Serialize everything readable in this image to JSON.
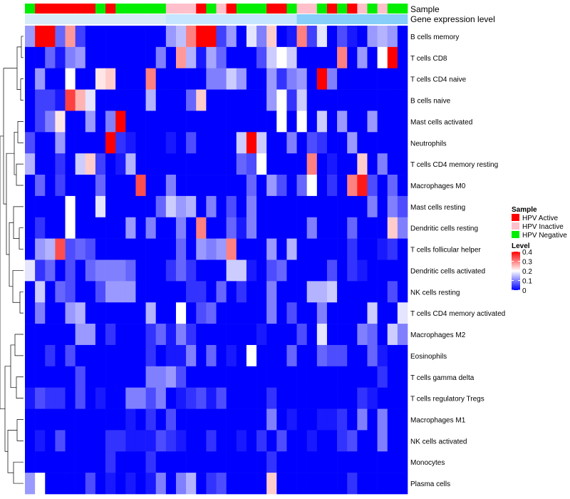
{
  "chart_data": {
    "type": "heatmap",
    "title": "",
    "annotations": [
      {
        "name": "Sample"
      },
      {
        "name": "Gene expression level"
      }
    ],
    "sample_groups": [
      "HPV Negative",
      "HPV Active",
      "HPV Active",
      "HPV Active",
      "HPV Active",
      "HPV Active",
      "HPV Active",
      "HPV Negative",
      "HPV Active",
      "HPV Negative",
      "HPV Negative",
      "HPV Negative",
      "HPV Negative",
      "HPV Negative",
      "HPV Inactive",
      "HPV Inactive",
      "HPV Inactive",
      "HPV Active",
      "HPV Negative",
      "HPV Inactive",
      "HPV Active",
      "HPV Negative",
      "HPV Negative",
      "HPV Negative",
      "HPV Active",
      "HPV Active",
      "HPV Negative",
      "HPV Inactive",
      "HPV Inactive",
      "HPV Negative",
      "HPV Active",
      "HPV Negative",
      "HPV Active",
      "HPV Inactive",
      "HPV Negative",
      "HPV Inactive",
      "HPV Negative",
      "HPV Negative"
    ],
    "expression_level": [
      0,
      0,
      0,
      0,
      0,
      0,
      0,
      0,
      0,
      0,
      0,
      0,
      0,
      0,
      0.5,
      0.5,
      0.5,
      0.5,
      0.5,
      0.5,
      0.5,
      0.5,
      0.5,
      0.5,
      0.5,
      0.5,
      0.5,
      1,
      1,
      1,
      1,
      1,
      1,
      1,
      1,
      1,
      1,
      1
    ],
    "rows": [
      {
        "name": "B cells memory",
        "values": [
          0.12,
          0.4,
          0.4,
          0.08,
          0.28,
          0.05,
          0,
          0,
          0,
          0,
          0,
          0,
          0,
          0,
          0.12,
          0.15,
          0.3,
          0.4,
          0.4,
          0.05,
          0.12,
          0,
          0.18,
          0.1,
          0.24,
          0,
          0.02,
          0.3,
          0.05,
          0.18,
          0,
          0.06,
          0.02,
          0,
          0.12,
          0.14,
          0.12,
          0
        ]
      },
      {
        "name": "T cells CD8",
        "values": [
          0,
          0,
          0.08,
          0.02,
          0.1,
          0.12,
          0,
          0,
          0,
          0,
          0,
          0,
          0,
          0.1,
          0,
          0.28,
          0.14,
          0.02,
          0.13,
          0.08,
          0,
          0,
          0,
          0.06,
          0.16,
          0.2,
          0.16,
          0,
          0,
          0,
          0,
          0.3,
          0,
          0.12,
          0,
          0.2,
          0.4,
          0
        ]
      },
      {
        "name": "T cells CD4 naive",
        "values": [
          0,
          0.12,
          0,
          0,
          0.2,
          0,
          0,
          0.22,
          0.24,
          0,
          0,
          0,
          0.3,
          0,
          0,
          0,
          0,
          0,
          0.1,
          0.1,
          0.16,
          0.12,
          0,
          0,
          0.12,
          0.04,
          0.1,
          0.12,
          0,
          0.4,
          0.1,
          0,
          0,
          0,
          0,
          0,
          0,
          0
        ]
      },
      {
        "name": "B cells naive",
        "values": [
          0,
          0.05,
          0.05,
          0.02,
          0.35,
          0.26,
          0.18,
          0,
          0,
          0,
          0,
          0,
          0.14,
          0,
          0,
          0,
          0.08,
          0.24,
          0,
          0,
          0,
          0,
          0,
          0,
          0.12,
          0.2,
          0.04,
          0.16,
          0,
          0,
          0,
          0,
          0,
          0,
          0,
          0,
          0,
          0
        ]
      },
      {
        "name": "Mast cells activated",
        "values": [
          0,
          0.05,
          0.1,
          0.22,
          0,
          0,
          0.12,
          0,
          0.1,
          0.4,
          0,
          0,
          0,
          0,
          0,
          0,
          0,
          0,
          0,
          0,
          0,
          0,
          0,
          0,
          0,
          0.2,
          0,
          0.2,
          0,
          0.16,
          0,
          0.12,
          0,
          0,
          0.12,
          0,
          0,
          0
        ]
      },
      {
        "name": "Neutrophils",
        "values": [
          0.06,
          0,
          0,
          0.12,
          0,
          0,
          0,
          0,
          0.4,
          0.04,
          0.02,
          0,
          0,
          0,
          0.02,
          0,
          0.06,
          0,
          0,
          0,
          0,
          0.16,
          0.4,
          0.16,
          0,
          0,
          0.1,
          0,
          0.06,
          0.04,
          0,
          0,
          0.12,
          0,
          0,
          0,
          0,
          0
        ]
      },
      {
        "name": "T cells CD4 memory resting",
        "values": [
          0.14,
          0,
          0,
          0.04,
          0,
          0.16,
          0.24,
          0.05,
          0,
          0.02,
          0.14,
          0,
          0,
          0,
          0,
          0,
          0,
          0,
          0,
          0,
          0,
          0.08,
          0.06,
          0.2,
          0,
          0,
          0,
          0,
          0.3,
          0,
          0.02,
          0,
          0,
          0.24,
          0,
          0.1,
          0,
          0
        ]
      },
      {
        "name": "Macrophages M0",
        "values": [
          0,
          0.08,
          0,
          0.05,
          0,
          0,
          0,
          0.08,
          0,
          0,
          0,
          0.34,
          0,
          0,
          0.1,
          0,
          0,
          0,
          0,
          0,
          0,
          0,
          0.08,
          0,
          0.12,
          0.06,
          0,
          0.08,
          0.2,
          0,
          0.04,
          0,
          0.3,
          0.38,
          0.06,
          0,
          0.08,
          0
        ]
      },
      {
        "name": "Mast cells resting",
        "values": [
          0,
          0,
          0,
          0,
          0.2,
          0,
          0,
          0.18,
          0,
          0,
          0,
          0,
          0,
          0.08,
          0.16,
          0.12,
          0.14,
          0,
          0.1,
          0,
          0.06,
          0,
          0.1,
          0,
          0,
          0,
          0,
          0,
          0,
          0,
          0,
          0,
          0,
          0,
          0.1,
          0,
          0.1,
          0.06
        ]
      },
      {
        "name": "Dendritic cells resting",
        "values": [
          0,
          0.04,
          0,
          0,
          0.2,
          0,
          0,
          0,
          0,
          0,
          0.12,
          0,
          0.1,
          0,
          0,
          0.1,
          0,
          0.3,
          0,
          0,
          0.08,
          0.02,
          0.1,
          0,
          0,
          0,
          0,
          0,
          0.1,
          0,
          0,
          0,
          0.08,
          0,
          0,
          0,
          0.24,
          0.1
        ]
      },
      {
        "name": "T cells follicular helper",
        "values": [
          0,
          0.12,
          0.14,
          0.34,
          0.06,
          0.08,
          0.06,
          0,
          0,
          0,
          0,
          0,
          0,
          0,
          0,
          0.08,
          0,
          0.12,
          0.1,
          0.12,
          0.3,
          0,
          0,
          0,
          0.12,
          0,
          0.14,
          0,
          0,
          0,
          0,
          0,
          0.04,
          0,
          0,
          0.02,
          0.04,
          0
        ]
      },
      {
        "name": "Dendritic cells activated",
        "values": [
          0.18,
          0.04,
          0.08,
          0,
          0.06,
          0,
          0.08,
          0.1,
          0.1,
          0.1,
          0.08,
          0,
          0,
          0,
          0.04,
          0.08,
          0.04,
          0,
          0,
          0,
          0.16,
          0.16,
          0.02,
          0,
          0.06,
          0.08,
          0,
          0,
          0,
          0,
          0.06,
          0,
          0.04,
          0.02,
          0,
          0,
          0,
          0
        ]
      },
      {
        "name": "NK cells resting",
        "values": [
          0,
          0.16,
          0,
          0.08,
          0.06,
          0,
          0,
          0.06,
          0.12,
          0.12,
          0.12,
          0,
          0,
          0,
          0,
          0,
          0.04,
          0.04,
          0,
          0.08,
          0,
          0.04,
          0,
          0,
          0.1,
          0,
          0,
          0,
          0.14,
          0.14,
          0.16,
          0,
          0,
          0,
          0,
          0,
          0.06,
          0
        ]
      },
      {
        "name": "T cells CD4 memory activated",
        "values": [
          0,
          0.1,
          0,
          0,
          0.12,
          0.14,
          0,
          0,
          0,
          0,
          0,
          0,
          0.14,
          0,
          0,
          0.2,
          0,
          0.06,
          0.08,
          0,
          0,
          0,
          0,
          0,
          0.1,
          0,
          0.06,
          0,
          0,
          0.1,
          0,
          0,
          0,
          0,
          0.16,
          0,
          0,
          0.18
        ]
      },
      {
        "name": "Macrophages M2",
        "values": [
          0,
          0,
          0,
          0,
          0,
          0.12,
          0.12,
          0,
          0.04,
          0,
          0,
          0,
          0.04,
          0.08,
          0.02,
          0.1,
          0.04,
          0,
          0,
          0,
          0,
          0,
          0,
          0.02,
          0,
          0,
          0,
          0.06,
          0,
          0.18,
          0,
          0,
          0,
          0.1,
          0.08,
          0,
          0.16,
          0.1
        ]
      },
      {
        "name": "Eosinophils",
        "values": [
          0,
          0,
          0.04,
          0,
          0.06,
          0,
          0,
          0,
          0,
          0,
          0,
          0,
          0.04,
          0,
          0.02,
          0.02,
          0.1,
          0,
          0.08,
          0,
          0.02,
          0,
          0.2,
          0,
          0,
          0,
          0.08,
          0,
          0,
          0.08,
          0.06,
          0.06,
          0,
          0,
          0.08,
          0.02,
          0,
          0
        ]
      },
      {
        "name": "T cells gamma delta",
        "values": [
          0,
          0,
          0,
          0,
          0,
          0.06,
          0,
          0,
          0,
          0,
          0,
          0,
          0.1,
          0.1,
          0.12,
          0.06,
          0,
          0,
          0,
          0,
          0,
          0,
          0,
          0,
          0,
          0,
          0,
          0,
          0,
          0,
          0,
          0,
          0,
          0,
          0,
          0.04,
          0,
          0
        ]
      },
      {
        "name": "T cells regulatory  Tregs",
        "values": [
          0.02,
          0.06,
          0.04,
          0.04,
          0,
          0.06,
          0,
          0.02,
          0,
          0,
          0.1,
          0.1,
          0.06,
          0.1,
          0,
          0.02,
          0.04,
          0.06,
          0.02,
          0.06,
          0,
          0,
          0,
          0,
          0.04,
          0,
          0,
          0,
          0,
          0,
          0,
          0,
          0,
          0.04,
          0.02,
          0,
          0,
          0
        ]
      },
      {
        "name": "Macrophages M1",
        "values": [
          0,
          0,
          0,
          0,
          0,
          0,
          0,
          0,
          0,
          0,
          0.02,
          0,
          0.04,
          0,
          0.06,
          0,
          0,
          0,
          0,
          0,
          0,
          0,
          0,
          0,
          0.1,
          0,
          0.02,
          0,
          0,
          0.02,
          0.02,
          0.04,
          0,
          0.1,
          0,
          0.1,
          0,
          0
        ]
      },
      {
        "name": "NK cells activated",
        "values": [
          0,
          0.02,
          0,
          0.06,
          0,
          0,
          0,
          0,
          0.04,
          0.04,
          0.02,
          0.02,
          0.02,
          0.06,
          0.04,
          0.02,
          0,
          0,
          0.04,
          0,
          0,
          0.02,
          0,
          0.04,
          0,
          0.06,
          0,
          0,
          0.02,
          0,
          0,
          0.04,
          0.06,
          0,
          0,
          0.1,
          0,
          0
        ]
      },
      {
        "name": "Monocytes",
        "values": [
          0,
          0,
          0,
          0,
          0,
          0,
          0,
          0,
          0.04,
          0,
          0,
          0,
          0.04,
          0,
          0,
          0,
          0,
          0,
          0,
          0,
          0,
          0,
          0,
          0,
          0.04,
          0,
          0,
          0,
          0,
          0,
          0,
          0,
          0,
          0,
          0,
          0,
          0,
          0
        ]
      },
      {
        "name": "Plasma cells",
        "values": [
          0.12,
          0.2,
          0,
          0,
          0,
          0,
          0.06,
          0,
          0.02,
          0,
          0.02,
          0,
          0.02,
          0.1,
          0,
          0.1,
          0.14,
          0,
          0.04,
          0.06,
          0,
          0,
          0,
          0,
          0.24,
          0,
          0,
          0,
          0,
          0,
          0,
          0,
          0.04,
          0,
          0,
          0,
          0,
          0
        ]
      }
    ],
    "color_scale": {
      "min": 0,
      "max": 0.4,
      "low": "#0000ff",
      "mid": "#ffffff",
      "high": "#ff0000"
    },
    "legend": {
      "sample_title": "Sample",
      "sample_entries": [
        {
          "label": "HPV Active",
          "color": "#ff0000"
        },
        {
          "label": "HPV Inactive",
          "color": "#ffc0cb"
        },
        {
          "label": "HPV Negative",
          "color": "#00ee00"
        }
      ],
      "level_title": "Level",
      "level_ticks": [
        "0.4",
        "0.3",
        "0.2",
        "0.1",
        "0"
      ],
      "level_tick_values": [
        0.4,
        0.3,
        0.2,
        0.1,
        0
      ]
    },
    "expression_colors": [
      "#d7ecf8",
      "#c6e5ff",
      "#87cefa"
    ]
  }
}
